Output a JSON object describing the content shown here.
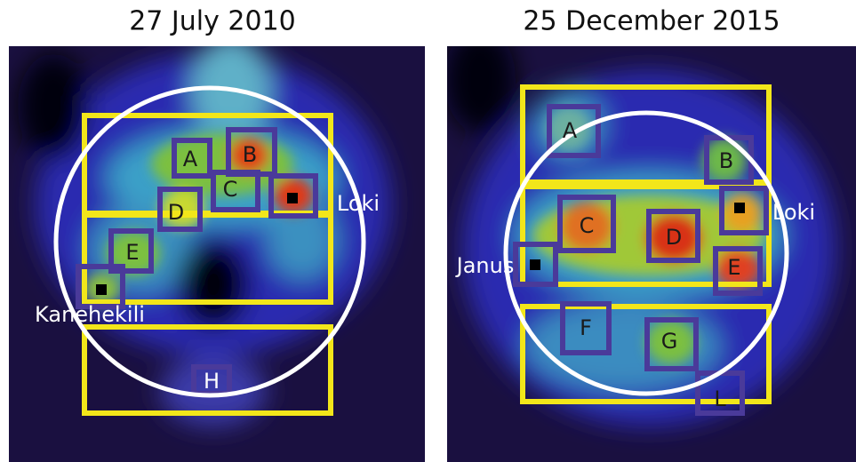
{
  "panels": [
    {
      "title": "27 July 2010",
      "labels": [
        "A",
        "B",
        "C",
        "D",
        "E",
        "H",
        "Loki",
        "Kanehekili"
      ]
    },
    {
      "title": "25 December 2015",
      "labels": [
        "A",
        "B",
        "C",
        "D",
        "E",
        "F",
        "G",
        "L",
        "Loki",
        "Janus"
      ]
    }
  ]
}
